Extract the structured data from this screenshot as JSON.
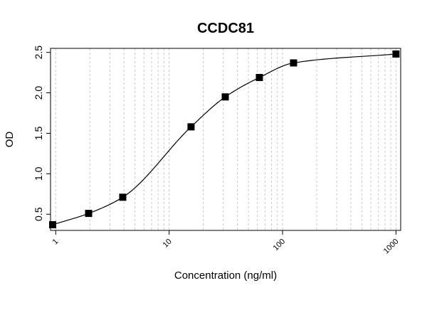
{
  "chart_data": {
    "type": "scatter",
    "title": "CCDC81",
    "xlabel": "Concentration (ng/ml)",
    "ylabel": "OD",
    "x_scale": "log",
    "xlim": [
      0.9,
      1100
    ],
    "ylim": [
      0.3,
      2.55
    ],
    "grid": true,
    "x_ticks": [
      1,
      10,
      100,
      1000
    ],
    "x_tick_labels": [
      "1",
      "10",
      "100",
      "1000"
    ],
    "y_ticks": [
      0.5,
      1.0,
      1.5,
      2.0,
      2.5
    ],
    "y_tick_labels": [
      "0.5",
      "1.0",
      "1.5",
      "2.0",
      "2.5"
    ],
    "series": [
      {
        "marker": "square",
        "x": [
          0.94,
          1.95,
          3.9,
          15.6,
          31.25,
          62.5,
          125,
          1000
        ],
        "y": [
          0.37,
          0.51,
          0.71,
          1.58,
          1.95,
          2.19,
          2.37,
          2.48
        ]
      }
    ]
  }
}
